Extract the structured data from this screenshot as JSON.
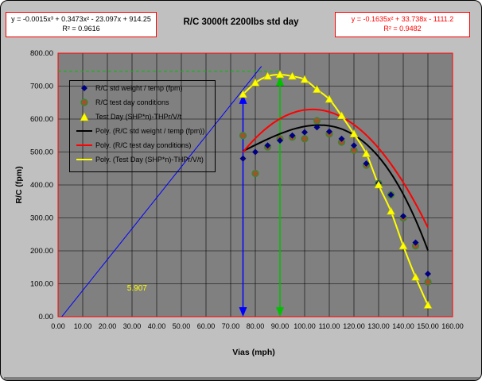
{
  "chart_data": {
    "type": "scatter",
    "title": "R/C 3000ft 2200lbs std day",
    "xlabel": "Vias (mph)",
    "ylabel": "R/C (fpm)",
    "xlim": [
      0,
      160
    ],
    "ylim": [
      0,
      800
    ],
    "x_ticks": [
      "0.00",
      "10.00",
      "20.00",
      "30.00",
      "40.00",
      "50.00",
      "60.00",
      "70.00",
      "80.00",
      "90.00",
      "100.00",
      "110.00",
      "120.00",
      "130.00",
      "140.00",
      "150.00",
      "160.00"
    ],
    "y_ticks": [
      "0.00",
      "100.00",
      "200.00",
      "300.00",
      "400.00",
      "500.00",
      "600.00",
      "700.00",
      "800.00"
    ],
    "grid": true,
    "legend_position": "upper-left",
    "equations": {
      "left": {
        "line1": "y = -0.0015x³ + 0.3473x² - 23.097x + 914.25",
        "line2": "R² = 0.9616"
      },
      "right": {
        "line1": "y = -0.1635x² + 33.738x - 1111.2",
        "line2": "R² = 0.9482"
      }
    },
    "annotation": {
      "text": "5.907",
      "x": 28,
      "y": 80
    },
    "series": [
      {
        "name": "R/C std weight / temp (fpm)",
        "kind": "scatter",
        "marker": "diamond",
        "color": "#000080",
        "points": [
          [
            75,
            480
          ],
          [
            80,
            500
          ],
          [
            85,
            520
          ],
          [
            90,
            535
          ],
          [
            95,
            550
          ],
          [
            100,
            560
          ],
          [
            105,
            575
          ],
          [
            110,
            562
          ],
          [
            115,
            540
          ],
          [
            120,
            520
          ],
          [
            125,
            465
          ],
          [
            130,
            405
          ],
          [
            135,
            370
          ],
          [
            140,
            305
          ],
          [
            145,
            225
          ],
          [
            150,
            130
          ]
        ]
      },
      {
        "name": "R/C test day conditions",
        "kind": "scatter",
        "marker": "circle",
        "color": "#a0522d",
        "points": [
          [
            75,
            550
          ],
          [
            80,
            435
          ],
          [
            85,
            515
          ],
          [
            90,
            540
          ],
          [
            95,
            545
          ],
          [
            100,
            540
          ],
          [
            105,
            595
          ],
          [
            110,
            555
          ],
          [
            115,
            530
          ],
          [
            120,
            505
          ],
          [
            125,
            460
          ],
          [
            130,
            405
          ],
          [
            135,
            370
          ],
          [
            140,
            300
          ],
          [
            145,
            215
          ],
          [
            150,
            105
          ]
        ]
      },
      {
        "name": "Test Day (SHP*n)-THPr/V/t",
        "kind": "scatter",
        "marker": "triangle",
        "color": "#ffff00",
        "points": [
          [
            75,
            675
          ],
          [
            80,
            710
          ],
          [
            85,
            730
          ],
          [
            90,
            735
          ],
          [
            95,
            730
          ],
          [
            100,
            720
          ],
          [
            105,
            690
          ],
          [
            110,
            660
          ],
          [
            115,
            610
          ],
          [
            120,
            555
          ],
          [
            125,
            495
          ],
          [
            130,
            400
          ],
          [
            135,
            320
          ],
          [
            140,
            215
          ],
          [
            145,
            120
          ],
          [
            150,
            35
          ]
        ]
      },
      {
        "name": "Poly. (R/C std weight / temp (fpm))",
        "kind": "line",
        "color": "#000000",
        "fit": "cubic",
        "coefficients": [
          -0.0015,
          0.3473,
          -23.097,
          914.25
        ],
        "x_range": [
          75,
          150
        ]
      },
      {
        "name": "Poly. (R/C test day conditions)",
        "kind": "line",
        "color": "#ff0000",
        "fit": "quadratic",
        "coefficients": [
          -0.1635,
          33.738,
          -1111.2
        ],
        "x_range": [
          75,
          150
        ]
      },
      {
        "name": "Poly. (Test Day (SHP*n)-THPr/V/t)",
        "kind": "line",
        "color": "#ffff00",
        "fit": "smooth",
        "x_range": [
          75,
          150
        ]
      }
    ],
    "overlays": [
      {
        "kind": "line",
        "color": "#0000ff",
        "from": [
          1.5,
          0
        ],
        "to": [
          82.5,
          760
        ]
      },
      {
        "kind": "arrow",
        "color": "#0000ff",
        "x": 75,
        "y_from": 0,
        "y_to": 675
      },
      {
        "kind": "arrow",
        "color": "#00c000",
        "x": 90,
        "y_from": 0,
        "y_to": 730
      },
      {
        "kind": "dashed",
        "color": "#00c000",
        "from": [
          0,
          745
        ],
        "to": [
          90,
          745
        ]
      }
    ]
  }
}
